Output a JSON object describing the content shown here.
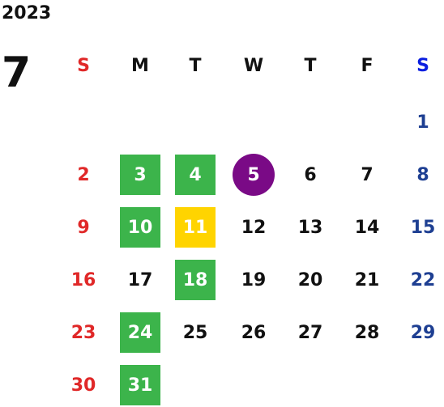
{
  "year": "2023",
  "month": "7",
  "weekdays": [
    "S",
    "M",
    "T",
    "W",
    "T",
    "F",
    "S"
  ],
  "weeks": [
    [
      null,
      null,
      null,
      null,
      null,
      null,
      {
        "day": 1
      }
    ],
    [
      {
        "day": 2
      },
      {
        "day": 3,
        "highlight": "green"
      },
      {
        "day": 4,
        "highlight": "green"
      },
      {
        "day": 5,
        "highlight": "purple"
      },
      {
        "day": 6
      },
      {
        "day": 7
      },
      {
        "day": 8
      }
    ],
    [
      {
        "day": 9
      },
      {
        "day": 10,
        "highlight": "green"
      },
      {
        "day": 11,
        "highlight": "yellow"
      },
      {
        "day": 12
      },
      {
        "day": 13
      },
      {
        "day": 14
      },
      {
        "day": 15
      }
    ],
    [
      {
        "day": 16
      },
      {
        "day": 17
      },
      {
        "day": 18,
        "highlight": "green"
      },
      {
        "day": 19
      },
      {
        "day": 20
      },
      {
        "day": 21
      },
      {
        "day": 22
      }
    ],
    [
      {
        "day": 23
      },
      {
        "day": 24,
        "highlight": "green"
      },
      {
        "day": 25
      },
      {
        "day": 26
      },
      {
        "day": 27
      },
      {
        "day": 28
      },
      {
        "day": 29
      }
    ],
    [
      {
        "day": 30
      },
      {
        "day": 31,
        "highlight": "green"
      },
      null,
      null,
      null,
      null,
      null
    ]
  ]
}
